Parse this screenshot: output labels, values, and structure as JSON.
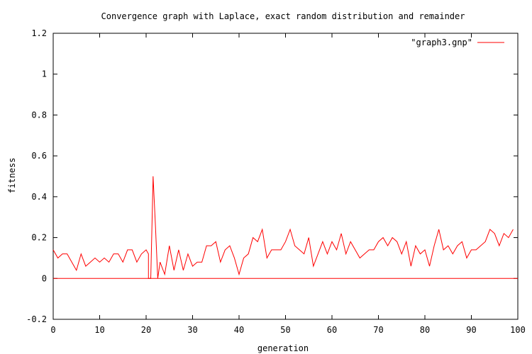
{
  "chart_data": {
    "type": "line",
    "title": "Convergence graph with Laplace, exact random distribution and remainder",
    "xlabel": "generation",
    "ylabel": "fitness",
    "xlim": [
      0,
      100
    ],
    "ylim": [
      -0.2,
      1.2
    ],
    "x_ticks": [
      0,
      10,
      20,
      30,
      40,
      50,
      60,
      70,
      80,
      90,
      100
    ],
    "y_ticks": [
      -0.2,
      0,
      0.2,
      0.4,
      0.6,
      0.8,
      1,
      1.2
    ],
    "x_tick_labels": [
      "0",
      "10",
      "20",
      "30",
      "40",
      "50",
      "60",
      "70",
      "80",
      "90",
      "100"
    ],
    "y_tick_labels": [
      "-0.2",
      "0",
      "0.2",
      "0.4",
      "0.6",
      "0.8",
      "1",
      "1.2"
    ],
    "grid": false,
    "legend_position": "top-right",
    "series": [
      {
        "name": "\"graph3.gnp\"",
        "color": "#ff0000",
        "points": [
          [
            0,
            0.14
          ],
          [
            1,
            0.1
          ],
          [
            2,
            0.12
          ],
          [
            3,
            0.12
          ],
          [
            4,
            0.08
          ],
          [
            5,
            0.04
          ],
          [
            6,
            0.12
          ],
          [
            7,
            0.06
          ],
          [
            8,
            0.08
          ],
          [
            9,
            0.1
          ],
          [
            10,
            0.08
          ],
          [
            11,
            0.1
          ],
          [
            12,
            0.08
          ],
          [
            13,
            0.12
          ],
          [
            14,
            0.12
          ],
          [
            15,
            0.08
          ],
          [
            16,
            0.14
          ],
          [
            17,
            0.14
          ],
          [
            18,
            0.08
          ],
          [
            19,
            0.12
          ],
          [
            20,
            0.14
          ],
          [
            20.5,
            0.12
          ],
          [
            20.5,
            0
          ],
          [
            21,
            0
          ],
          [
            21.5,
            0.5
          ],
          [
            22,
            0.26
          ],
          [
            22.5,
            0
          ],
          [
            23,
            0.08
          ],
          [
            24,
            0.02
          ],
          [
            25,
            0.16
          ],
          [
            26,
            0.04
          ],
          [
            27,
            0.14
          ],
          [
            28,
            0.04
          ],
          [
            29,
            0.12
          ],
          [
            30,
            0.06
          ],
          [
            31,
            0.08
          ],
          [
            32,
            0.08
          ],
          [
            33,
            0.16
          ],
          [
            34,
            0.16
          ],
          [
            35,
            0.18
          ],
          [
            36,
            0.08
          ],
          [
            37,
            0.14
          ],
          [
            38,
            0.16
          ],
          [
            39,
            0.1
          ],
          [
            40,
            0.02
          ],
          [
            41,
            0.1
          ],
          [
            42,
            0.12
          ],
          [
            43,
            0.2
          ],
          [
            44,
            0.18
          ],
          [
            45,
            0.24
          ],
          [
            46,
            0.1
          ],
          [
            47,
            0.14
          ],
          [
            48,
            0.14
          ],
          [
            49,
            0.14
          ],
          [
            50,
            0.18
          ],
          [
            51,
            0.24
          ],
          [
            52,
            0.16
          ],
          [
            53,
            0.14
          ],
          [
            54,
            0.12
          ],
          [
            55,
            0.2
          ],
          [
            56,
            0.06
          ],
          [
            57,
            0.12
          ],
          [
            58,
            0.18
          ],
          [
            59,
            0.12
          ],
          [
            60,
            0.18
          ],
          [
            61,
            0.14
          ],
          [
            62,
            0.22
          ],
          [
            63,
            0.12
          ],
          [
            64,
            0.18
          ],
          [
            65,
            0.14
          ],
          [
            66,
            0.1
          ],
          [
            67,
            0.12
          ],
          [
            68,
            0.14
          ],
          [
            69,
            0.14
          ],
          [
            70,
            0.18
          ],
          [
            71,
            0.2
          ],
          [
            72,
            0.16
          ],
          [
            73,
            0.2
          ],
          [
            74,
            0.18
          ],
          [
            75,
            0.12
          ],
          [
            76,
            0.18
          ],
          [
            77,
            0.06
          ],
          [
            78,
            0.16
          ],
          [
            79,
            0.12
          ],
          [
            80,
            0.14
          ],
          [
            81,
            0.06
          ],
          [
            82,
            0.16
          ],
          [
            83,
            0.24
          ],
          [
            84,
            0.14
          ],
          [
            85,
            0.16
          ],
          [
            86,
            0.12
          ],
          [
            87,
            0.16
          ],
          [
            88,
            0.18
          ],
          [
            89,
            0.1
          ],
          [
            90,
            0.14
          ],
          [
            91,
            0.14
          ],
          [
            92,
            0.16
          ],
          [
            93,
            0.18
          ],
          [
            94,
            0.24
          ],
          [
            95,
            0.22
          ],
          [
            96,
            0.16
          ],
          [
            97,
            0.22
          ],
          [
            98,
            0.2
          ],
          [
            99,
            0.24
          ]
        ]
      },
      {
        "name": "",
        "color": "#ff0000",
        "points": [
          [
            0,
            0
          ],
          [
            100,
            0
          ]
        ]
      }
    ]
  }
}
